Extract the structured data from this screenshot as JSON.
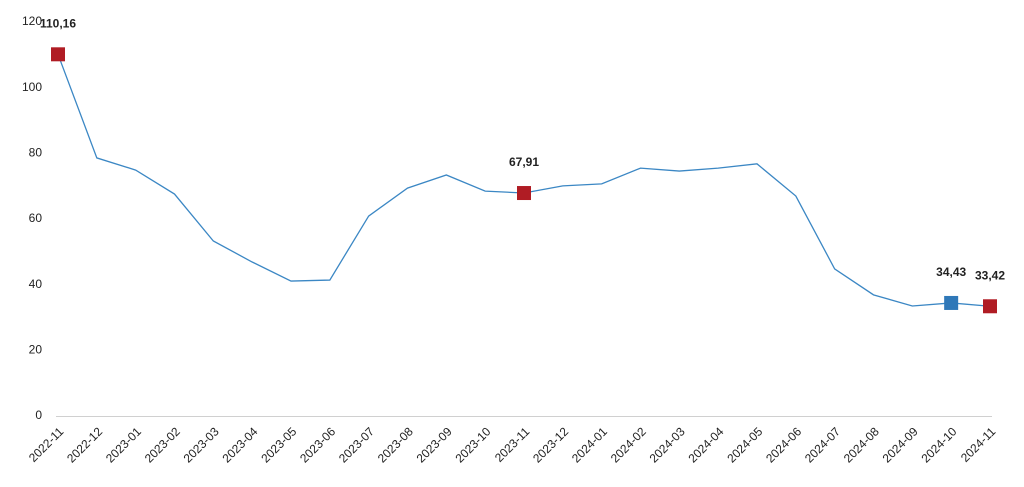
{
  "chart_data": {
    "type": "line",
    "categories": [
      "2022-11",
      "2022-12",
      "2023-01",
      "2023-02",
      "2023-03",
      "2023-04",
      "2023-05",
      "2023-06",
      "2023-07",
      "2023-08",
      "2023-09",
      "2023-10",
      "2023-11",
      "2023-12",
      "2024-01",
      "2024-02",
      "2024-03",
      "2024-04",
      "2024-05",
      "2024-06",
      "2024-07",
      "2024-08",
      "2024-09",
      "2024-10",
      "2024-11"
    ],
    "series": [
      {
        "color": "#3b87c4",
        "values": [
          110.16,
          78.6,
          74.9,
          67.6,
          53.3,
          46.9,
          41.1,
          41.4,
          60.9,
          69.4,
          73.4,
          68.5,
          67.91,
          70.1,
          70.7,
          75.5,
          74.6,
          75.5,
          76.8,
          67.0,
          44.8,
          36.9,
          33.5,
          34.43,
          33.42
        ],
        "value_labels": [
          "110,16",
          null,
          null,
          null,
          null,
          null,
          null,
          null,
          null,
          null,
          null,
          null,
          "67,91",
          null,
          null,
          null,
          null,
          null,
          null,
          null,
          null,
          null,
          null,
          "34,43",
          "33,42"
        ],
        "marker_colors": [
          "#b01c24",
          null,
          null,
          null,
          null,
          null,
          null,
          null,
          null,
          null,
          null,
          null,
          "#b01c24",
          null,
          null,
          null,
          null,
          null,
          null,
          null,
          null,
          null,
          null,
          "#2f78b8",
          "#b01c24"
        ]
      }
    ],
    "ylim": [
      0,
      120
    ],
    "yticks": [
      0,
      20,
      40,
      60,
      80,
      100,
      120
    ],
    "grid": false
  }
}
